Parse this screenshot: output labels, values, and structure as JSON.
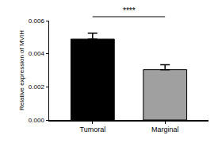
{
  "chart_data": {
    "type": "bar",
    "y_label": "Relative expression of MVIH",
    "categories": [
      "Tumoral",
      "Marginal"
    ],
    "values": [
      0.00489,
      0.00304
    ],
    "errors": [
      0.00035,
      0.0003
    ],
    "colors": [
      "#000000",
      "#a0a0a0"
    ],
    "ylim": [
      0,
      0.006
    ],
    "yticks": [
      {
        "value": 0,
        "label": "0.000"
      },
      0.002,
      0.004,
      0.006
    ],
    "grid": false,
    "annotations": [
      "****"
    ]
  }
}
